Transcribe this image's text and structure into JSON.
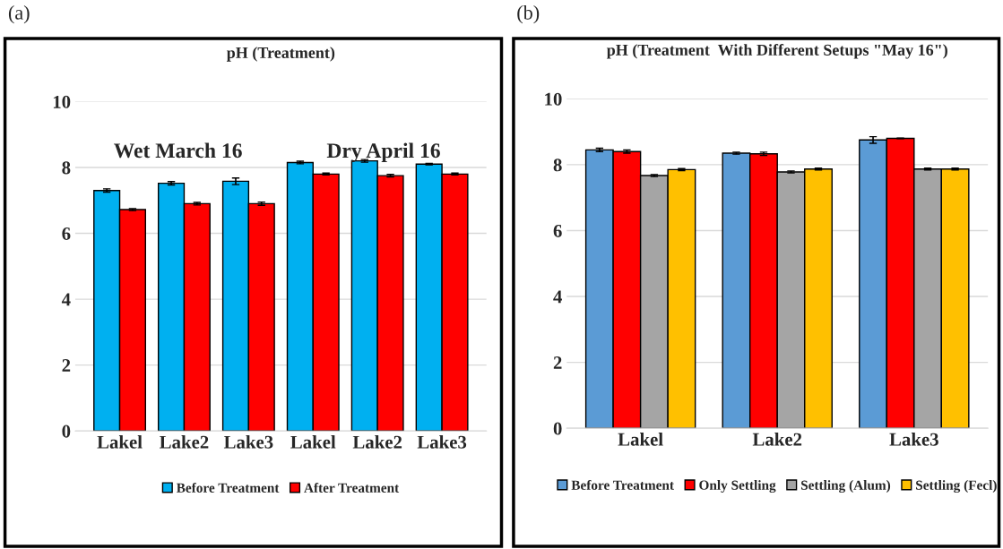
{
  "chart_data": [
    {
      "type": "bar",
      "title": "pH (Treatment)",
      "categories": [
        "Lakel",
        "Lake2",
        "Lake3",
        "Lakel",
        "Lake2",
        "Lake3"
      ],
      "ylim": [
        0,
        10
      ],
      "yticks": [
        0,
        2,
        4,
        6,
        8,
        10
      ],
      "grid": "y",
      "legend": "bottom",
      "series": [
        {
          "name": "Before Treatment",
          "color": "#00b0f0",
          "values": [
            7.3,
            7.52,
            7.58,
            8.15,
            8.2,
            8.1
          ],
          "errors": [
            0.05,
            0.05,
            0.1,
            0.04,
            0.04,
            0.02
          ]
        },
        {
          "name": "After Treatment",
          "color": "#ff0000",
          "values": [
            6.72,
            6.9,
            6.9,
            7.8,
            7.75,
            7.8
          ],
          "errors": [
            0.03,
            0.04,
            0.05,
            0.03,
            0.04,
            0.03
          ]
        }
      ],
      "annotations": [
        "(a)",
        "Wet March 16",
        "Dry April 16"
      ]
    },
    {
      "type": "bar",
      "title": "pH (Treatment  With Different Setups \"May 16\")",
      "categories": [
        "Lakel",
        "Lake2",
        "Lake3"
      ],
      "ylim": [
        0,
        10
      ],
      "yticks": [
        0,
        2,
        4,
        6,
        8,
        10
      ],
      "grid": "y",
      "legend": "bottom",
      "series": [
        {
          "name": "Before Treatment",
          "color": "#5b9bd5",
          "values": [
            8.45,
            8.35,
            8.75
          ],
          "errors": [
            0.05,
            0.03,
            0.1
          ]
        },
        {
          "name": "Only Settling",
          "color": "#ff0000",
          "values": [
            8.4,
            8.33,
            8.8
          ],
          "errors": [
            0.05,
            0.05,
            0.01
          ]
        },
        {
          "name": "Settling (Alum)",
          "color": "#a5a5a5",
          "values": [
            7.67,
            7.78,
            7.87
          ],
          "errors": [
            0.03,
            0.03,
            0.03
          ]
        },
        {
          "name": "Settling (Fecl)",
          "color": "#ffc000",
          "values": [
            7.85,
            7.87,
            7.87
          ],
          "errors": [
            0.03,
            0.03,
            0.03
          ]
        }
      ],
      "annotations": [
        "(b)"
      ]
    }
  ]
}
